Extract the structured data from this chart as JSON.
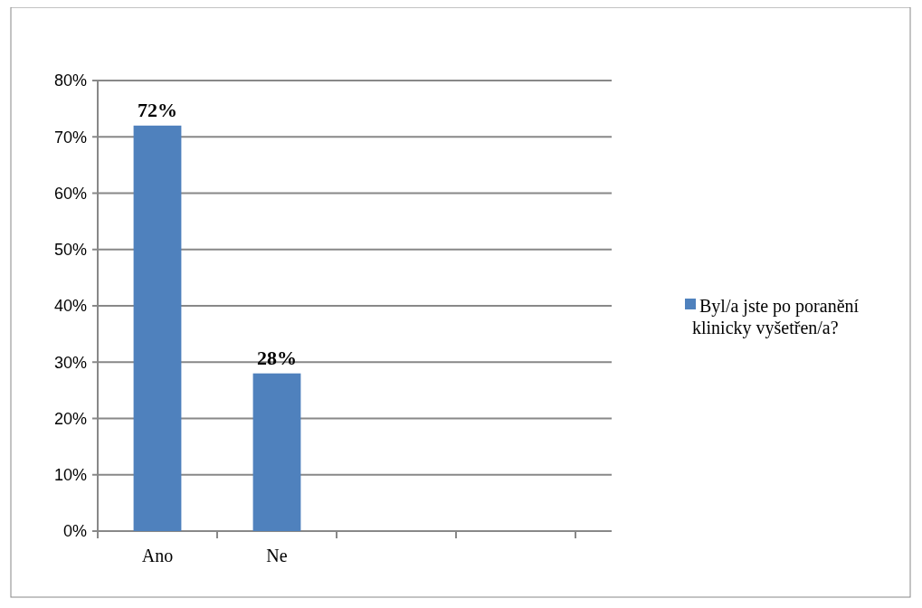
{
  "chart_data": {
    "type": "bar",
    "categories": [
      "Ano",
      "Ne",
      null,
      null
    ],
    "series": [
      {
        "name": "Byl/a jste po poranění klinicky vyšetřen/a?",
        "color": "#4f81bd",
        "values": [
          72,
          28,
          null,
          null
        ],
        "value_labels": [
          "72%",
          "28%",
          null,
          null
        ]
      }
    ],
    "ylim": [
      0,
      80
    ],
    "yticks": [
      {
        "value": 0,
        "label": "0%"
      },
      {
        "value": 10,
        "label": "10%"
      },
      {
        "value": 20,
        "label": "20%"
      },
      {
        "value": 30,
        "label": "30%"
      },
      {
        "value": 40,
        "label": "40%"
      },
      {
        "value": 50,
        "label": "50%"
      },
      {
        "value": 60,
        "label": "60%"
      },
      {
        "value": 70,
        "label": "70%"
      },
      {
        "value": 80,
        "label": "80%"
      }
    ],
    "grid": "y",
    "legend": "right"
  }
}
